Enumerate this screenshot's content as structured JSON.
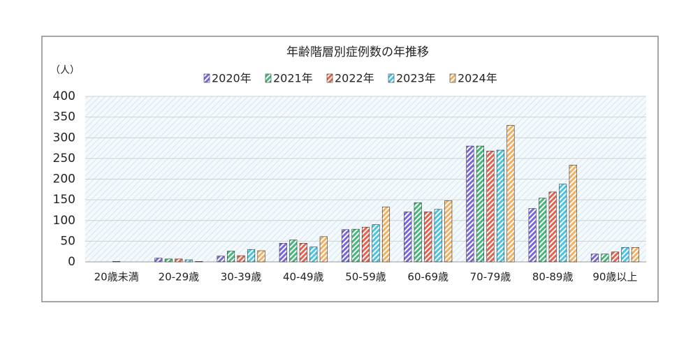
{
  "chart_data": {
    "type": "bar",
    "title": "年齢階層別症例数の年推移",
    "y_label": "（人）",
    "categories": [
      "20歳未満",
      "20-29歳",
      "30-39歳",
      "40-49歳",
      "50-59歳",
      "60-69歳",
      "70-79歳",
      "80-89歳",
      "90歳以上"
    ],
    "series": [
      {
        "name": "2020年",
        "color": "#7866e0",
        "values": [
          0,
          9,
          14,
          45,
          78,
          121,
          280,
          129,
          19
        ]
      },
      {
        "name": "2021年",
        "color": "#44b87a",
        "values": [
          0,
          7,
          26,
          53,
          79,
          143,
          280,
          154,
          19
        ]
      },
      {
        "name": "2022年",
        "color": "#e8604c",
        "values": [
          1,
          7,
          15,
          45,
          84,
          121,
          268,
          169,
          24
        ]
      },
      {
        "name": "2023年",
        "color": "#48c4e4",
        "values": [
          0,
          5,
          30,
          36,
          90,
          127,
          270,
          188,
          35
        ]
      },
      {
        "name": "2024年",
        "color": "#f2b060",
        "values": [
          0,
          1,
          27,
          61,
          133,
          148,
          330,
          234,
          35
        ]
      }
    ],
    "ylim": [
      0,
      400
    ],
    "yticks": [
      0,
      50,
      100,
      150,
      200,
      250,
      300,
      350,
      400
    ],
    "grid": true
  }
}
